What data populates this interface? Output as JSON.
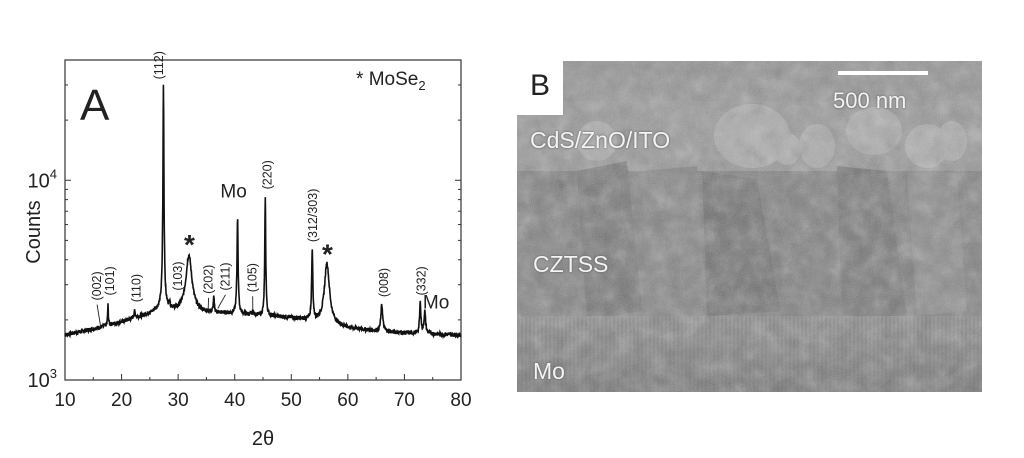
{
  "chart_data": {
    "type": "line",
    "panel_label": "A",
    "xlabel": "2θ",
    "ylabel": "Counts",
    "xlim": [
      10,
      80
    ],
    "ylim": [
      1000,
      40000
    ],
    "yscale": "log",
    "xticks": [
      "10",
      "20",
      "30",
      "40",
      "50",
      "60",
      "70",
      "80"
    ],
    "xtick_values": [
      10,
      20,
      30,
      40,
      50,
      60,
      70,
      80
    ],
    "yticks": [
      {
        "base": "10",
        "exp": "3",
        "value": 1000
      },
      {
        "base": "10",
        "exp": "4",
        "value": 10000
      }
    ],
    "legend": {
      "marker": "*",
      "label": "MoSe",
      "subscript": "2",
      "placement": "top-right"
    },
    "baseline": [
      [
        10,
        1680
      ],
      [
        15,
        1800
      ],
      [
        20,
        1950
      ],
      [
        25,
        2150
      ],
      [
        27,
        2300
      ],
      [
        30,
        2200
      ],
      [
        35,
        2170
      ],
      [
        40,
        2150
      ],
      [
        45,
        2100
      ],
      [
        50,
        2050
      ],
      [
        55,
        1950
      ],
      [
        60,
        1820
      ],
      [
        65,
        1760
      ],
      [
        70,
        1720
      ],
      [
        75,
        1700
      ],
      [
        80,
        1680
      ]
    ],
    "peaks": [
      {
        "x": 17.6,
        "height": 2370,
        "width": 0.15
      },
      {
        "x": 22.3,
        "height": 2200,
        "width": 0.3
      },
      {
        "x": 27.4,
        "height": 29900,
        "width": 0.12
      },
      {
        "x": 28.5,
        "height": 2450,
        "width": 0.15
      },
      {
        "x": 31.9,
        "height": 4220,
        "width": 1.1
      },
      {
        "x": 36.3,
        "height": 2570,
        "width": 0.2
      },
      {
        "x": 40.5,
        "height": 6460,
        "width": 0.18
      },
      {
        "x": 43.2,
        "height": 2200,
        "width": 0.2
      },
      {
        "x": 45.4,
        "height": 8130,
        "width": 0.15
      },
      {
        "x": 53.7,
        "height": 4470,
        "width": 0.2
      },
      {
        "x": 56.3,
        "height": 3850,
        "width": 0.9
      },
      {
        "x": 66.0,
        "height": 2370,
        "width": 0.35
      },
      {
        "x": 72.8,
        "height": 2430,
        "width": 0.25
      },
      {
        "x": 73.6,
        "height": 2200,
        "width": 0.3
      }
    ],
    "annotations": [
      {
        "text": "(002)",
        "x": 15.5,
        "y": 2500,
        "rotated": true,
        "arrow_to": [
          16.3,
          1850
        ]
      },
      {
        "text": "(101)",
        "x": 17.8,
        "y": 2650,
        "rotated": true
      },
      {
        "text": "(110)",
        "x": 22.5,
        "y": 2450,
        "rotated": true
      },
      {
        "text": "(112)",
        "x": 26.4,
        "y": 32000,
        "rotated": true
      },
      {
        "text": "(103)",
        "x": 29.8,
        "y": 2800,
        "rotated": true
      },
      {
        "text": "*",
        "x": 32.0,
        "y": 4900,
        "rotated": false,
        "size": "big"
      },
      {
        "text": "(202)",
        "x": 35.2,
        "y": 2700,
        "rotated": true,
        "arrow_to": [
          35.3,
          2200
        ]
      },
      {
        "text": "(211)",
        "x": 38.2,
        "y": 2800,
        "rotated": true,
        "arrow_to": [
          37.0,
          2280
        ]
      },
      {
        "text": "Mo",
        "x": 39.8,
        "y": 8200,
        "rotated": false
      },
      {
        "text": "(105)",
        "x": 43.0,
        "y": 2750,
        "rotated": true,
        "arrow_to": [
          43.2,
          2230
        ]
      },
      {
        "text": "(220)",
        "x": 45.6,
        "y": 9000,
        "rotated": true
      },
      {
        "text": "(312/303)",
        "x": 53.7,
        "y": 4900,
        "rotated": true
      },
      {
        "text": "*",
        "x": 56.4,
        "y": 4400,
        "rotated": false,
        "size": "big"
      },
      {
        "text": "(008)",
        "x": 66.2,
        "y": 2600,
        "rotated": true
      },
      {
        "text": "(332)",
        "x": 72.8,
        "y": 2650,
        "rotated": true
      },
      {
        "text": "Mo",
        "x": 75.6,
        "y": 2280,
        "rotated": false
      }
    ]
  },
  "panel_b": {
    "panel_label": "B",
    "scale_bar_label": "500 nm",
    "layer_labels": [
      "CdS/ZnO/ITO",
      "CZTSS",
      "Mo"
    ]
  }
}
